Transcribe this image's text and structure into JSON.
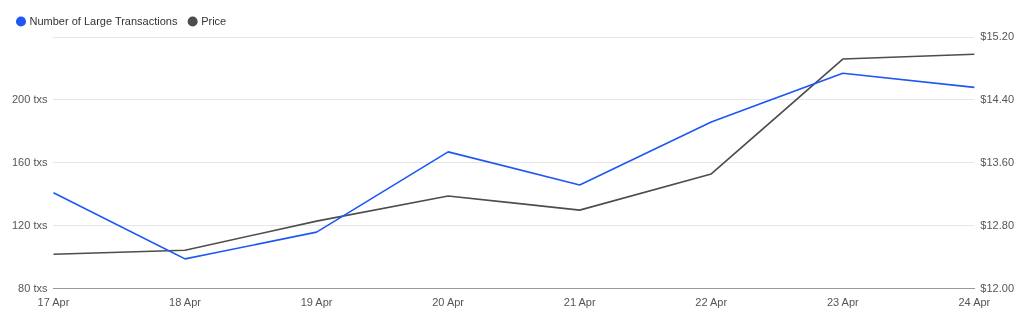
{
  "chart_data": {
    "type": "line",
    "categories": [
      "17 Apr",
      "18 Apr",
      "19 Apr",
      "20 Apr",
      "21 Apr",
      "22 Apr",
      "23 Apr",
      "24 Apr"
    ],
    "series": [
      {
        "name": "Number of Large Transactions",
        "color": "#1f57f5",
        "values": [
          141,
          99,
          116,
          167,
          146,
          186,
          217,
          208
        ]
      },
      {
        "name": "Price",
        "color": "#4d4d4d",
        "axis": "y2",
        "values": [
          12.44,
          12.49,
          12.86,
          13.18,
          13.0,
          13.46,
          14.92,
          14.98
        ]
      }
    ],
    "ylim": [
      80,
      240
    ],
    "yticks": [
      {
        "value": 80,
        "label": "80 txs"
      },
      {
        "value": 120,
        "label": "120 txs"
      },
      {
        "value": 160,
        "label": "160 txs"
      },
      {
        "value": 200,
        "label": "200 txs"
      },
      {
        "value": 240,
        "label": null
      }
    ],
    "y2lim": [
      12,
      15.2
    ],
    "y2ticks": [
      {
        "value": 12,
        "label": "$12.00"
      },
      {
        "value": 12.8,
        "label": "$12.80"
      },
      {
        "value": 13.6,
        "label": "$13.60"
      },
      {
        "value": 14.4,
        "label": "$14.40"
      },
      {
        "value": 15.2,
        "label": "$15.20"
      }
    ],
    "grid": "y",
    "legend": "top left",
    "marker": "none",
    "line_style": "solid"
  }
}
